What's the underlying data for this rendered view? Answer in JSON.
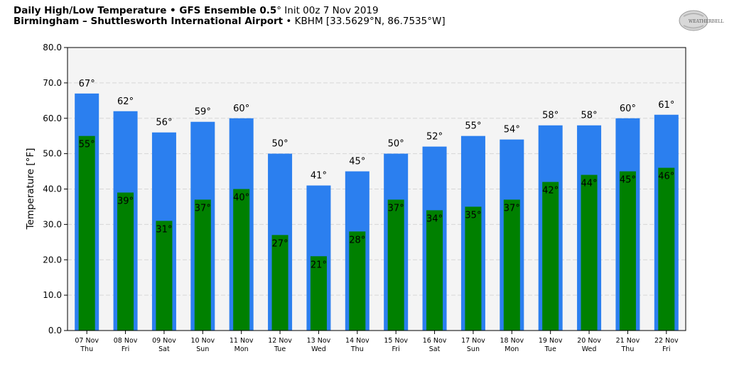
{
  "header": {
    "line1_bold": "Daily High/Low Temperature • GFS Ensemble 0.5",
    "line1_rest": "° Init 00z 7 Nov 2019",
    "line2_bold": "Birmingham – Shuttlesworth International Airport",
    "line2_rest": " • KBHM [33.5629°N, 86.7535°W]"
  },
  "logo": {
    "text": "WEATHERBELL"
  },
  "chart_data": {
    "type": "bar",
    "title": "Daily High/Low Temperature • GFS Ensemble 0.5° Init 00z 7 Nov 2019",
    "ylabel": "Temperature [°F]",
    "xlabel": "",
    "ylim": [
      0,
      80
    ],
    "yticks": [
      "0.0",
      "10.0",
      "20.0",
      "30.0",
      "40.0",
      "50.0",
      "60.0",
      "70.0",
      "80.0"
    ],
    "grid": true,
    "categories": [
      {
        "date": "07 Nov",
        "day": "Thu"
      },
      {
        "date": "08 Nov",
        "day": "Fri"
      },
      {
        "date": "09 Nov",
        "day": "Sat"
      },
      {
        "date": "10 Nov",
        "day": "Sun"
      },
      {
        "date": "11 Nov",
        "day": "Mon"
      },
      {
        "date": "12 Nov",
        "day": "Tue"
      },
      {
        "date": "13 Nov",
        "day": "Wed"
      },
      {
        "date": "14 Nov",
        "day": "Thu"
      },
      {
        "date": "15 Nov",
        "day": "Fri"
      },
      {
        "date": "16 Nov",
        "day": "Sat"
      },
      {
        "date": "17 Nov",
        "day": "Sun"
      },
      {
        "date": "18 Nov",
        "day": "Mon"
      },
      {
        "date": "19 Nov",
        "day": "Tue"
      },
      {
        "date": "20 Nov",
        "day": "Wed"
      },
      {
        "date": "21 Nov",
        "day": "Thu"
      },
      {
        "date": "22 Nov",
        "day": "Fri"
      }
    ],
    "series": [
      {
        "color": "#2b7fef",
        "values": [
          67,
          62,
          56,
          59,
          60,
          50,
          41,
          45,
          50,
          52,
          55,
          54,
          58,
          58,
          60,
          61
        ],
        "labels": [
          "67°",
          "62°",
          "56°",
          "59°",
          "60°",
          "50°",
          "41°",
          "45°",
          "50°",
          "52°",
          "55°",
          "54°",
          "58°",
          "58°",
          "60°",
          "61°"
        ]
      },
      {
        "color": "#008000",
        "values": [
          55,
          39,
          31,
          37,
          40,
          27,
          21,
          28,
          37,
          34,
          35,
          37,
          42,
          44,
          45,
          46
        ],
        "labels": [
          "55°",
          "39°",
          "31°",
          "37°",
          "40°",
          "27°",
          "21°",
          "28°",
          "37°",
          "34°",
          "35°",
          "37°",
          "42°",
          "44°",
          "45°",
          "46°"
        ]
      }
    ]
  }
}
